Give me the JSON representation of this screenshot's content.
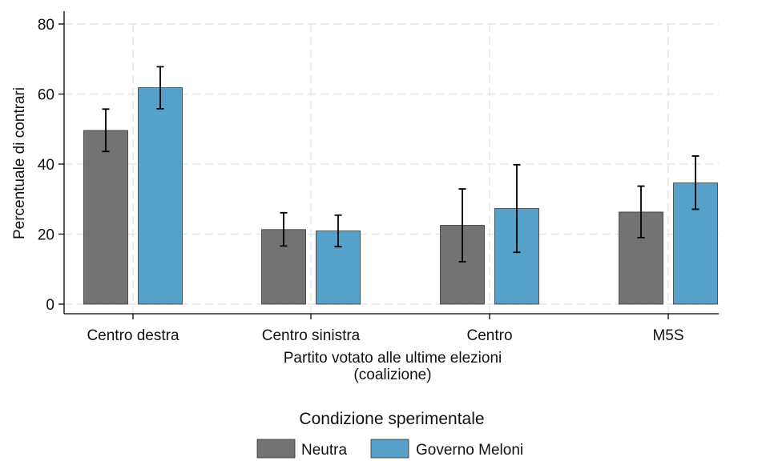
{
  "chart_data": {
    "type": "bar",
    "categories": [
      "Centro destra",
      "Centro sinistra",
      "Centro",
      "M5S"
    ],
    "series": [
      {
        "name": "Neutra",
        "color": "#737373",
        "values": [
          49.6,
          21.3,
          22.5,
          26.3
        ],
        "ci_low": [
          43.6,
          16.6,
          12.1,
          19.0
        ],
        "ci_high": [
          55.7,
          26.1,
          32.9,
          33.7
        ]
      },
      {
        "name": "Governo Meloni",
        "color": "#55a1c9",
        "values": [
          61.8,
          20.9,
          27.3,
          34.6
        ],
        "ci_low": [
          55.8,
          16.4,
          14.8,
          27.1
        ],
        "ci_high": [
          67.8,
          25.4,
          39.8,
          42.3
        ]
      }
    ],
    "ylabel": "Percentuale di contrari",
    "xlabel": "Partito votato alle ultime elezioni",
    "xlabel2": "(coalizione)",
    "ylim": [
      0,
      80
    ],
    "yticks": [
      0,
      20,
      40,
      60,
      80
    ],
    "grid": true,
    "legend": {
      "title": "Condizione sperimentale",
      "position": "bottom"
    }
  }
}
